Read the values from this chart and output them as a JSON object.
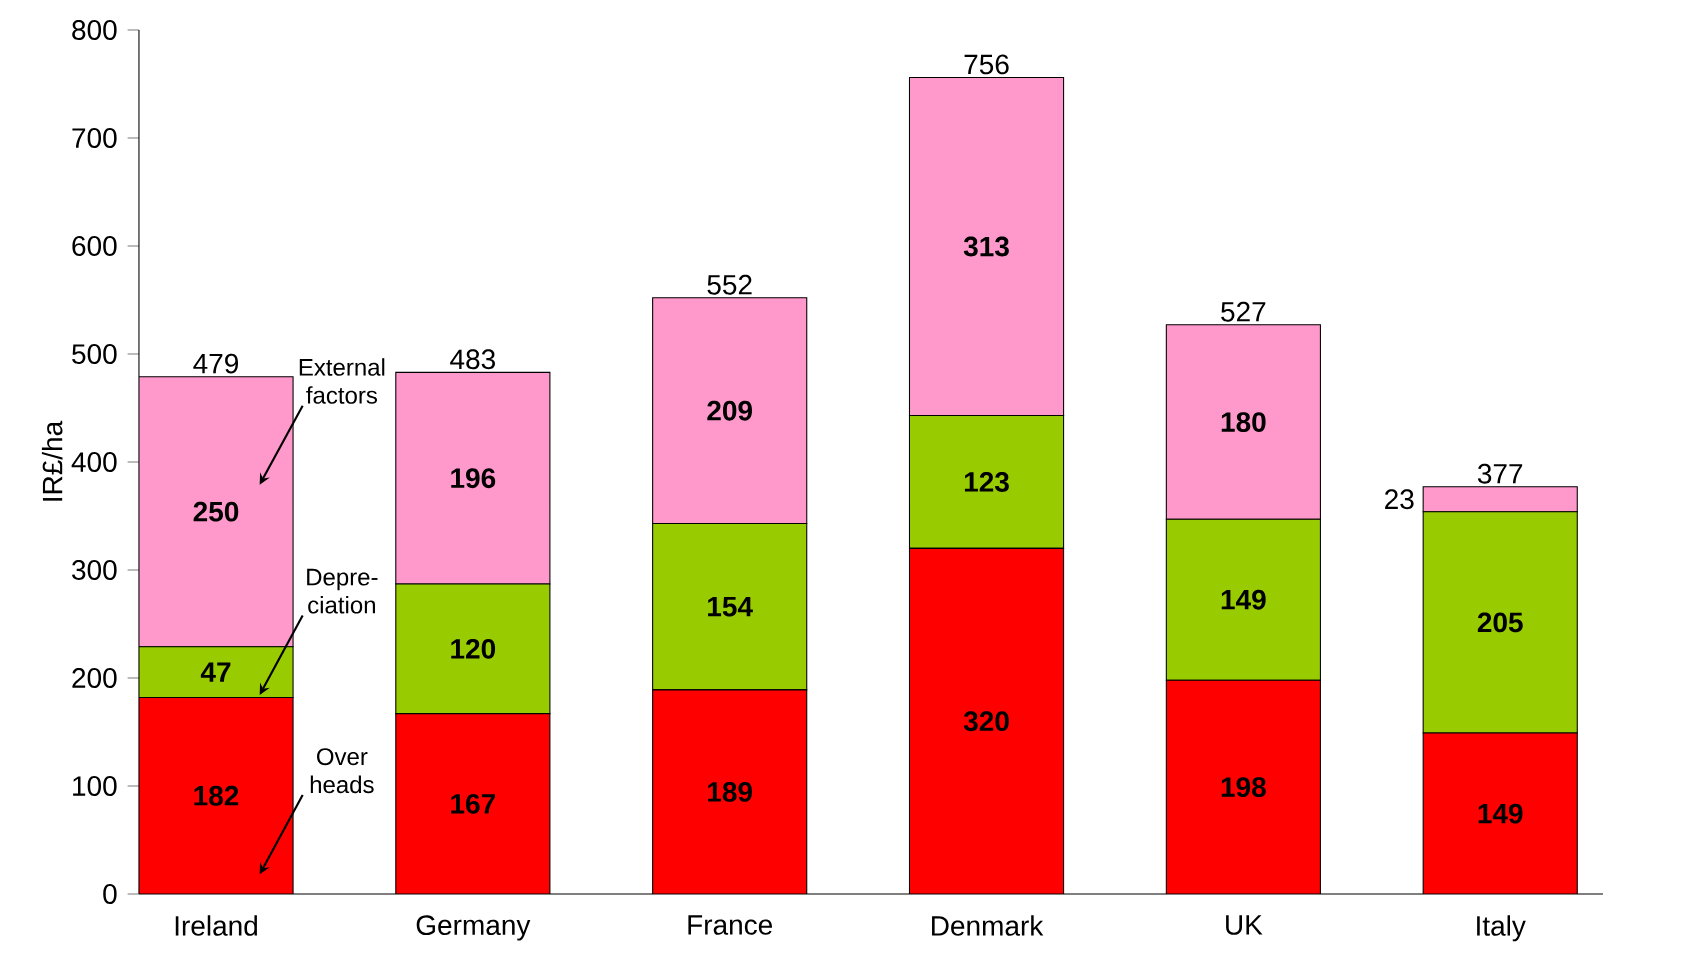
{
  "chart_data": {
    "type": "bar",
    "stacked": true,
    "ylabel": "IR£/ha",
    "categories": [
      "Ireland",
      "Germany",
      "France",
      "Denmark",
      "UK",
      "Italy"
    ],
    "series": [
      {
        "name": "Over heads",
        "color": "#ff0000",
        "values": [
          182,
          167,
          189,
          320,
          198,
          149
        ]
      },
      {
        "name": "Depre-ciation",
        "color": "#99cc00",
        "values": [
          47,
          120,
          154,
          123,
          149,
          205
        ]
      },
      {
        "name": "External factors",
        "color": "#ff99cc",
        "values": [
          250,
          196,
          209,
          313,
          180,
          23
        ]
      }
    ],
    "totals": [
      "479",
      "483",
      "552",
      "756",
      "527",
      "377"
    ],
    "data_labels": true,
    "ylim": [
      0,
      800
    ],
    "yticks": [
      0,
      100,
      200,
      300,
      400,
      500,
      600,
      700,
      800
    ]
  }
}
